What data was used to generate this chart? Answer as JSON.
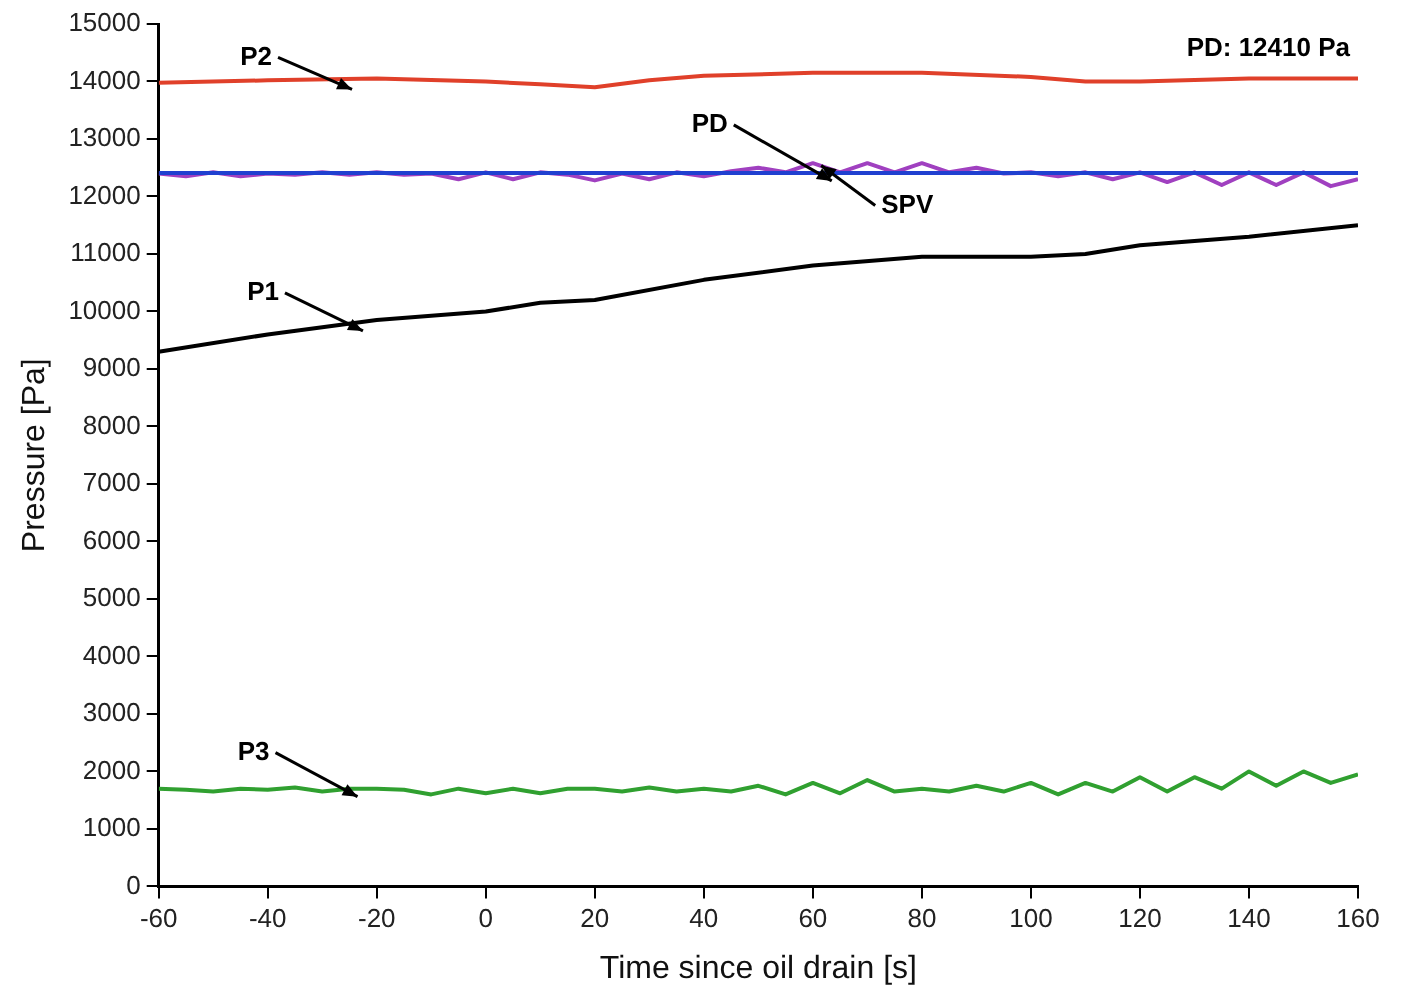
{
  "chart_data": {
    "type": "line",
    "xlabel": "Time since oil drain [s]",
    "ylabel": "Pressure [Pa]",
    "xlim": [
      -60,
      160
    ],
    "xticks": [
      -60,
      -40,
      -20,
      0,
      20,
      40,
      60,
      80,
      100,
      120,
      140,
      160
    ],
    "ylim": [
      0,
      15000
    ],
    "yticks": [
      0,
      1000,
      2000,
      3000,
      4000,
      5000,
      6000,
      7000,
      8000,
      9000,
      10000,
      11000,
      12000,
      13000,
      14000,
      15000
    ],
    "grid": false,
    "legend": false,
    "marker": "none",
    "line_style": "solid",
    "series": [
      {
        "color": "#e0402a",
        "x": [
          -60,
          -40,
          -20,
          0,
          10,
          20,
          30,
          40,
          60,
          80,
          100,
          110,
          120,
          140,
          160
        ],
        "values": [
          13980,
          14020,
          14050,
          14000,
          13950,
          13900,
          14020,
          14100,
          14150,
          14150,
          14080,
          14000,
          14000,
          14050,
          14050
        ]
      },
      {
        "color": "#2040d0",
        "x": [
          -60,
          160
        ],
        "values": [
          12410,
          12410
        ]
      },
      {
        "color": "#a040c0",
        "x": [
          -60,
          -55,
          -50,
          -45,
          -40,
          -35,
          -30,
          -25,
          -20,
          -15,
          -10,
          -5,
          0,
          5,
          10,
          15,
          20,
          25,
          30,
          35,
          40,
          45,
          50,
          55,
          60,
          65,
          70,
          75,
          80,
          85,
          90,
          95,
          100,
          105,
          110,
          115,
          120,
          125,
          130,
          135,
          140,
          145,
          150,
          155,
          160
        ],
        "values": [
          12400,
          12350,
          12420,
          12350,
          12400,
          12380,
          12420,
          12380,
          12420,
          12380,
          12400,
          12300,
          12420,
          12300,
          12420,
          12380,
          12280,
          12400,
          12300,
          12420,
          12350,
          12440,
          12500,
          12420,
          12580,
          12420,
          12580,
          12420,
          12580,
          12420,
          12500,
          12400,
          12420,
          12350,
          12420,
          12300,
          12420,
          12250,
          12420,
          12200,
          12420,
          12200,
          12420,
          12180,
          12300
        ]
      },
      {
        "color": "#000000",
        "x": [
          -60,
          -40,
          -20,
          0,
          10,
          20,
          40,
          60,
          80,
          100,
          110,
          120,
          140,
          160
        ],
        "values": [
          9300,
          9600,
          9850,
          10000,
          10150,
          10200,
          10550,
          10800,
          10950,
          10950,
          11000,
          11150,
          11300,
          11500
        ]
      },
      {
        "color": "#30a030",
        "x": [
          -60,
          -55,
          -50,
          -45,
          -40,
          -35,
          -30,
          -25,
          -20,
          -15,
          -10,
          -5,
          0,
          5,
          10,
          15,
          20,
          25,
          30,
          35,
          40,
          45,
          50,
          55,
          60,
          65,
          70,
          75,
          80,
          85,
          90,
          95,
          100,
          105,
          110,
          115,
          120,
          125,
          130,
          135,
          140,
          145,
          150,
          155,
          160
        ],
        "values": [
          1700,
          1680,
          1650,
          1700,
          1680,
          1720,
          1650,
          1700,
          1700,
          1680,
          1600,
          1700,
          1620,
          1700,
          1620,
          1700,
          1700,
          1650,
          1720,
          1650,
          1700,
          1650,
          1750,
          1600,
          1800,
          1620,
          1850,
          1650,
          1700,
          1650,
          1750,
          1650,
          1800,
          1600,
          1800,
          1650,
          1900,
          1650,
          1900,
          1700,
          2000,
          1750,
          2000,
          1800,
          1950
        ]
      }
    ],
    "annotations": [
      {
        "text": "P2",
        "x": -26,
        "y": 14000
      },
      {
        "text": "PD",
        "x": 62,
        "y": 12410
      },
      {
        "text": "SPV",
        "x": 63,
        "y": 12400
      },
      {
        "text": "P1",
        "x": -24,
        "y": 9800
      },
      {
        "text": "P3",
        "x": -25,
        "y": 1700
      },
      "PD: 12410 Pa"
    ]
  }
}
